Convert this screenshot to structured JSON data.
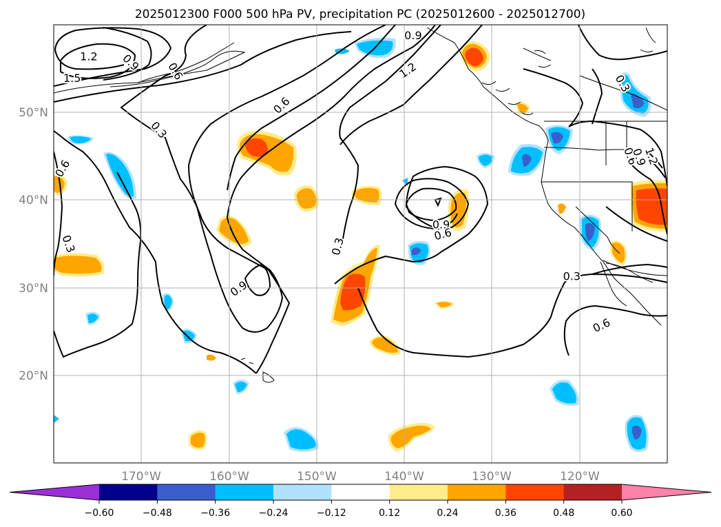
{
  "title": "2025012300 F000 500 hPa PV, precipitation PC (2025012600 - 2025012700)",
  "map": {
    "lon_range": [
      -180,
      -110
    ],
    "lat_range": [
      10,
      60
    ],
    "lon_ticks": [
      {
        "value": -170,
        "label": "170°W"
      },
      {
        "value": -160,
        "label": "160°W"
      },
      {
        "value": -150,
        "label": "150°W"
      },
      {
        "value": -140,
        "label": "140°W"
      },
      {
        "value": -130,
        "label": "130°W"
      },
      {
        "value": -120,
        "label": "120°W"
      }
    ],
    "lat_ticks": [
      {
        "value": 20,
        "label": "20°N"
      },
      {
        "value": 30,
        "label": "30°N"
      },
      {
        "value": 40,
        "label": "40°N"
      },
      {
        "value": 50,
        "label": "50°N"
      }
    ],
    "grid": true,
    "contour_labels": [
      {
        "text": "1.2",
        "lon": -176.0,
        "lat": 56.4,
        "rot": 0
      },
      {
        "text": "1.5",
        "lon": -177.9,
        "lat": 53.9,
        "rot": 0
      },
      {
        "text": "0.9",
        "lon": -171.2,
        "lat": 55.7,
        "rot": 45
      },
      {
        "text": "0.6",
        "lon": -166.1,
        "lat": 54.7,
        "rot": 60
      },
      {
        "text": "0.3",
        "lon": -168.0,
        "lat": 48.0,
        "rot": 50
      },
      {
        "text": "0.6",
        "lon": -179.0,
        "lat": 43.6,
        "rot": -60
      },
      {
        "text": "0.3",
        "lon": -178.3,
        "lat": 35.0,
        "rot": 70
      },
      {
        "text": "0.6",
        "lon": -154.0,
        "lat": 50.8,
        "rot": -45
      },
      {
        "text": "0.9",
        "lon": -139.0,
        "lat": 58.8,
        "rot": 0
      },
      {
        "text": "1.2",
        "lon": -139.6,
        "lat": 54.8,
        "rot": -35
      },
      {
        "text": "0.3",
        "lon": -147.6,
        "lat": 34.7,
        "rot": -75
      },
      {
        "text": "0.9",
        "lon": -158.9,
        "lat": 29.9,
        "rot": -35
      },
      {
        "text": "0.9",
        "lon": -135.8,
        "lat": 37.2,
        "rot": 0
      },
      {
        "text": "0.6",
        "lon": -135.6,
        "lat": 36.1,
        "rot": -15
      },
      {
        "text": "0.3",
        "lon": -115.1,
        "lat": 53.3,
        "rot": 60
      },
      {
        "text": "0.6",
        "lon": -114.2,
        "lat": 45.0,
        "rot": 70
      },
      {
        "text": "0.9",
        "lon": -113.2,
        "lat": 44.9,
        "rot": 70
      },
      {
        "text": "1.2",
        "lon": -111.8,
        "lat": 45.0,
        "rot": 70
      },
      {
        "text": "0.3",
        "lon": -120.9,
        "lat": 31.3,
        "rot": 0
      },
      {
        "text": "0.6",
        "lon": -117.5,
        "lat": 25.7,
        "rot": -25
      }
    ]
  },
  "colorbar": {
    "levels": [
      -0.6,
      -0.48,
      -0.36,
      -0.24,
      -0.12,
      0.12,
      0.24,
      0.36,
      0.48,
      0.6
    ],
    "labels": [
      "−0.60",
      "−0.48",
      "−0.36",
      "−0.24",
      "−0.12",
      "0.12",
      "0.24",
      "0.36",
      "0.48",
      "0.60"
    ],
    "colors": [
      "#9b30d9",
      "#00008b",
      "#3a5fcd",
      "#00bfff",
      "#b0e2ff",
      "#ffffff",
      "#ffec8b",
      "#ffa500",
      "#ff4500",
      "#b22222",
      "#ff82ab"
    ],
    "extend": "both"
  }
}
